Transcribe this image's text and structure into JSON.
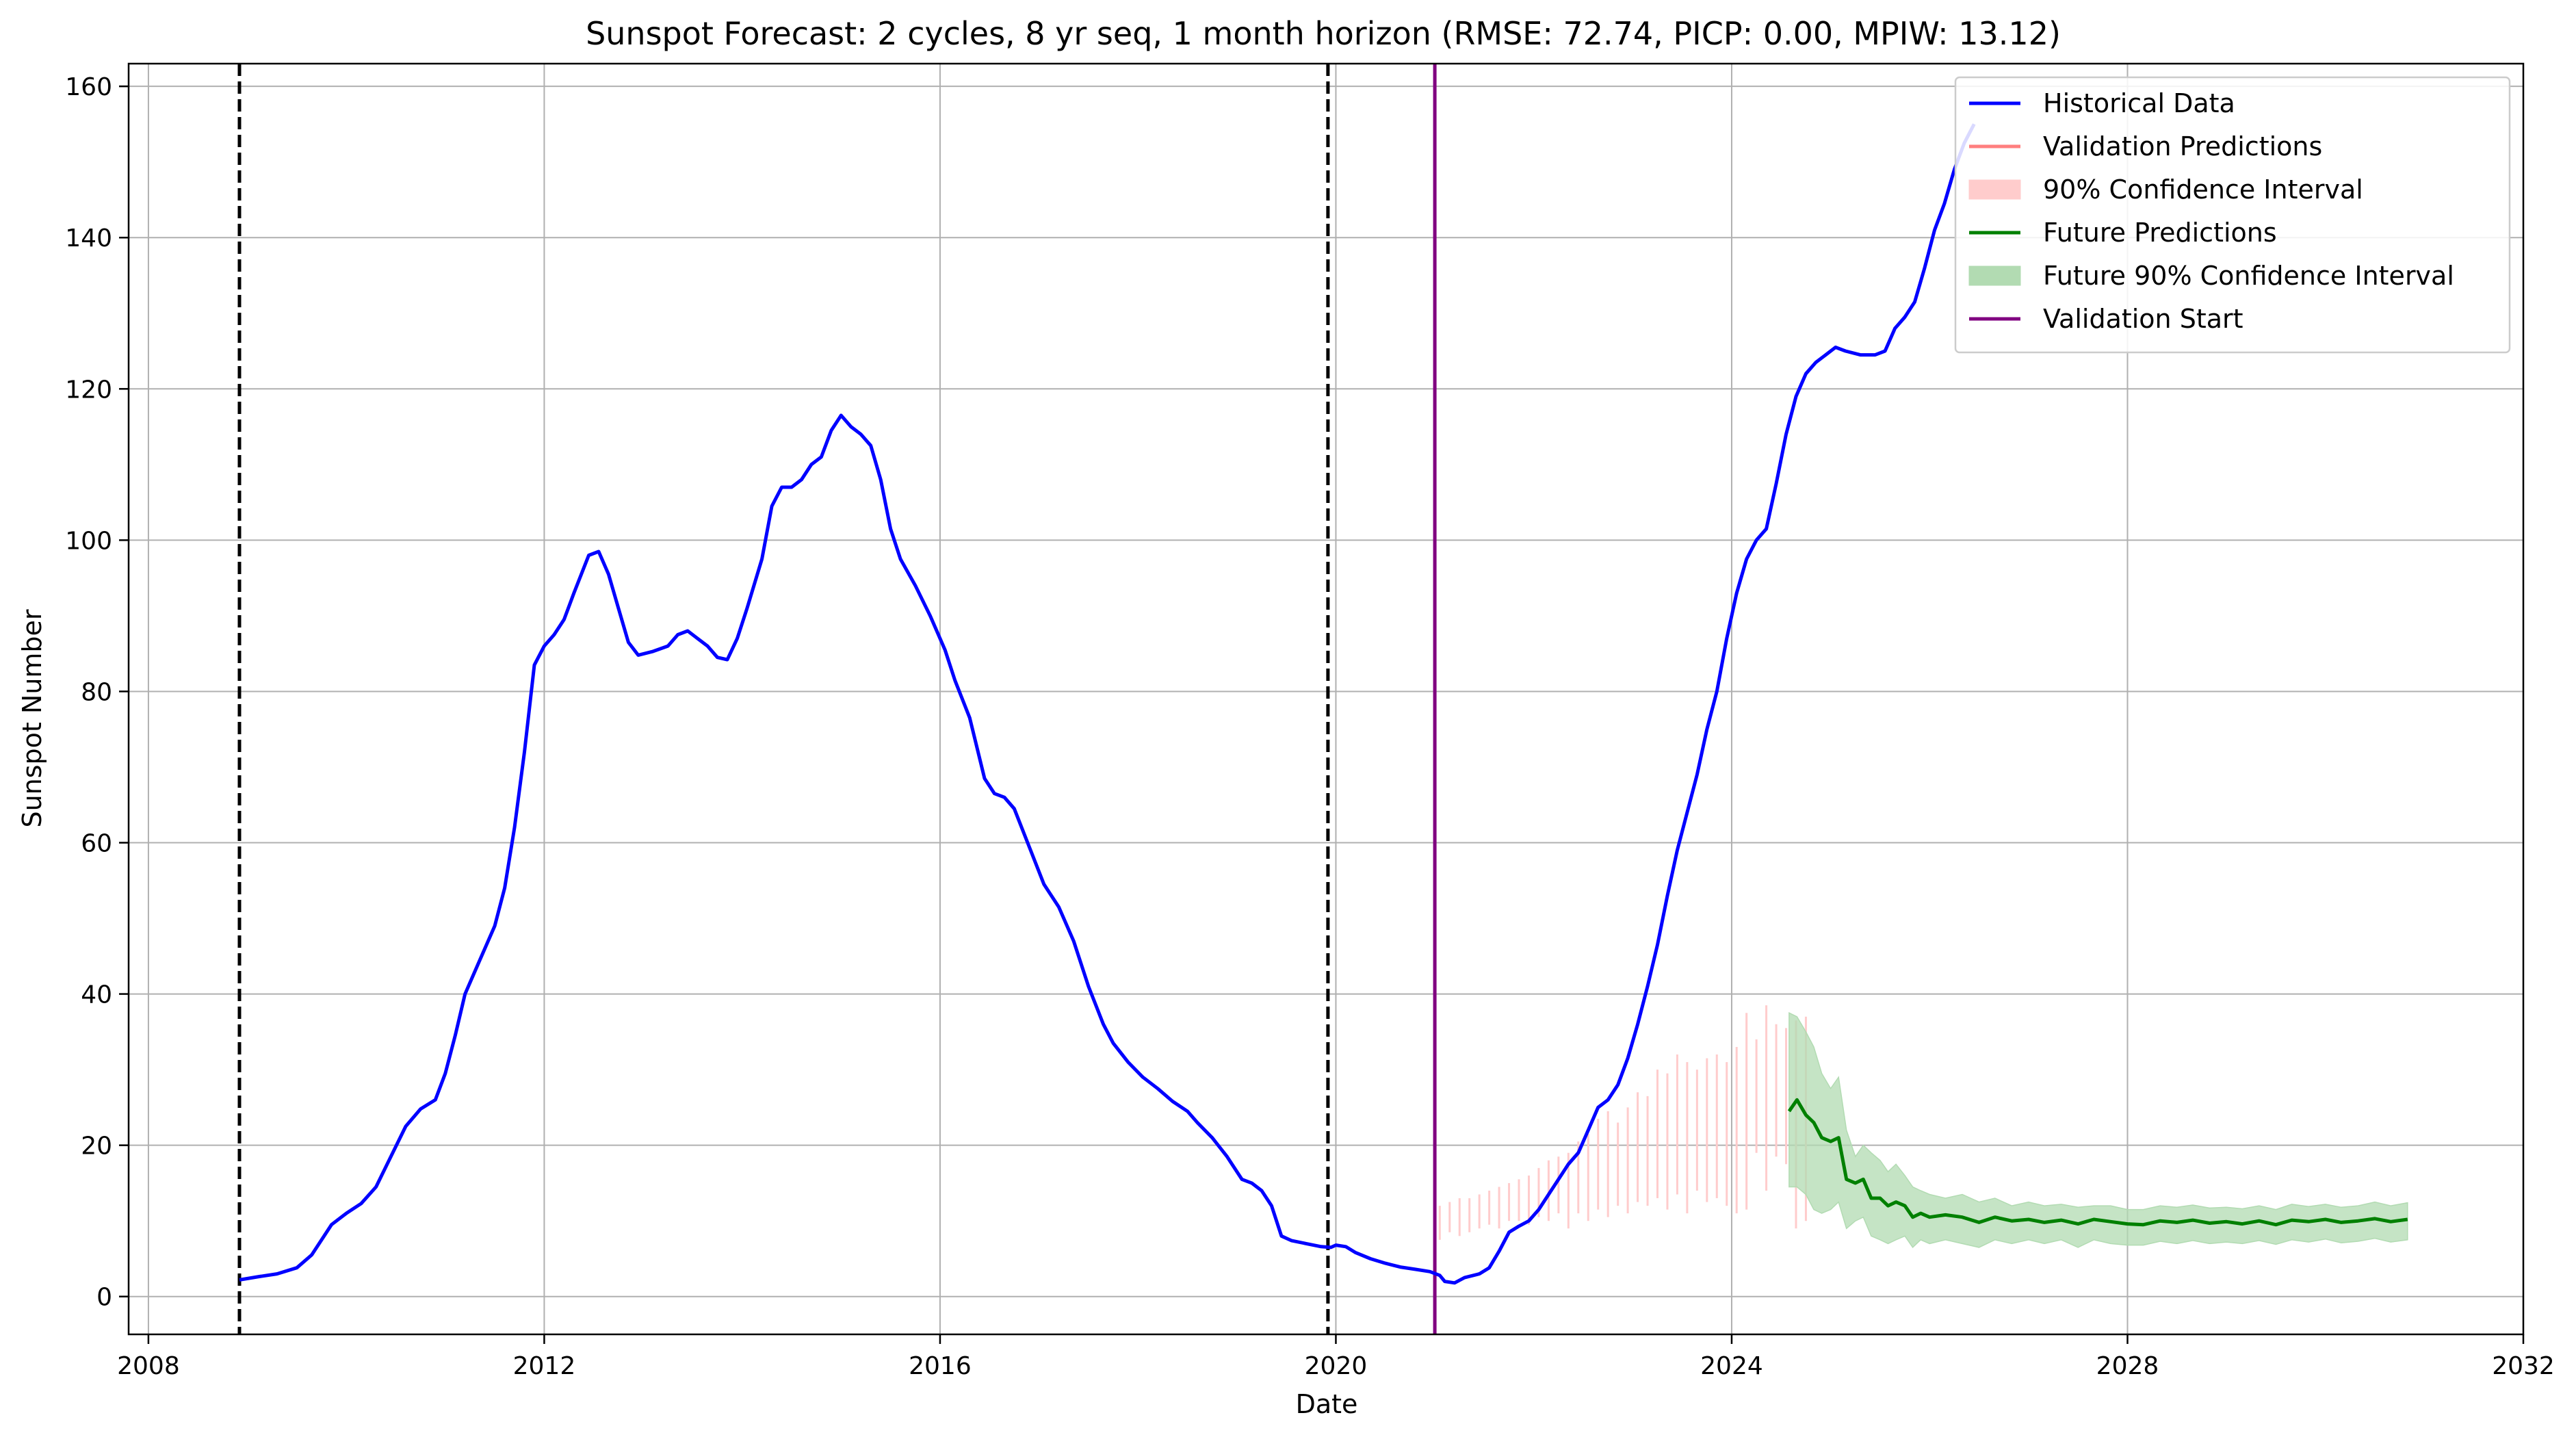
{
  "chart_data": {
    "type": "line",
    "title": "Sunspot Forecast: 2 cycles, 8 yr seq, 1 month horizon (RMSE: 72.74, PICP: 0.00, MPIW: 13.12)",
    "xlabel": "Date",
    "ylabel": "Sunspot Number",
    "xlim": [
      2007.8,
      2032.0
    ],
    "ylim": [
      -5,
      163
    ],
    "x_ticks": [
      2008,
      2012,
      2016,
      2020,
      2024,
      2028,
      2032
    ],
    "x_tick_labels": [
      "2008",
      "2012",
      "2016",
      "2020",
      "2024",
      "2028",
      "2032"
    ],
    "y_ticks": [
      0,
      20,
      40,
      60,
      80,
      100,
      120,
      140,
      160
    ],
    "y_tick_labels": [
      "0",
      "20",
      "40",
      "60",
      "80",
      "100",
      "120",
      "140",
      "160"
    ],
    "grid": true,
    "legend_position": "top-right",
    "colors": {
      "historical": "#0000ff",
      "validation": "#ff7f7f",
      "validation_ci": "#ffcccc",
      "future": "#008000",
      "future_ci": "#b2dbb2",
      "validation_start": "#800080",
      "cycle_marker": "#000000"
    },
    "legend": [
      {
        "label": "Historical Data",
        "kind": "line",
        "color": "#0000ff"
      },
      {
        "label": "Validation Predictions",
        "kind": "line",
        "color": "#ff7f7f"
      },
      {
        "label": "90% Confidence Interval",
        "kind": "patch",
        "color": "#ffcccc"
      },
      {
        "label": "Future Predictions",
        "kind": "line",
        "color": "#008000"
      },
      {
        "label": "Future 90% Confidence Interval",
        "kind": "patch",
        "color": "#b2dbb2"
      },
      {
        "label": "Validation Start",
        "kind": "line",
        "color": "#800080"
      }
    ],
    "vertical_lines": [
      {
        "x": 2008.92,
        "style": "dashed",
        "color": "#000000"
      },
      {
        "x": 2019.92,
        "style": "dashed",
        "color": "#000000"
      },
      {
        "x": 2021.0,
        "style": "solid",
        "color": "#800080"
      }
    ],
    "historical": [
      [
        2008.92,
        2.2
      ],
      [
        2009.1,
        2.6
      ],
      [
        2009.3,
        3.0
      ],
      [
        2009.5,
        3.8
      ],
      [
        2009.65,
        5.5
      ],
      [
        2009.85,
        9.5
      ],
      [
        2010.0,
        11.0
      ],
      [
        2010.15,
        12.3
      ],
      [
        2010.3,
        14.5
      ],
      [
        2010.45,
        18.5
      ],
      [
        2010.6,
        22.5
      ],
      [
        2010.75,
        24.8
      ],
      [
        2010.9,
        26.0
      ],
      [
        2011.0,
        29.5
      ],
      [
        2011.1,
        34.5
      ],
      [
        2011.2,
        40.0
      ],
      [
        2011.35,
        44.5
      ],
      [
        2011.5,
        49.0
      ],
      [
        2011.6,
        54.0
      ],
      [
        2011.7,
        62.0
      ],
      [
        2011.8,
        72.0
      ],
      [
        2011.9,
        83.5
      ],
      [
        2012.0,
        86.0
      ],
      [
        2012.1,
        87.5
      ],
      [
        2012.2,
        89.5
      ],
      [
        2012.3,
        93.0
      ],
      [
        2012.45,
        98.0
      ],
      [
        2012.55,
        98.5
      ],
      [
        2012.65,
        95.5
      ],
      [
        2012.75,
        91.0
      ],
      [
        2012.85,
        86.5
      ],
      [
        2012.95,
        84.8
      ],
      [
        2013.1,
        85.3
      ],
      [
        2013.25,
        86.0
      ],
      [
        2013.35,
        87.5
      ],
      [
        2013.45,
        88.0
      ],
      [
        2013.55,
        87.0
      ],
      [
        2013.65,
        86.0
      ],
      [
        2013.75,
        84.5
      ],
      [
        2013.85,
        84.2
      ],
      [
        2013.95,
        87.0
      ],
      [
        2014.05,
        91.0
      ],
      [
        2014.2,
        97.5
      ],
      [
        2014.3,
        104.5
      ],
      [
        2014.4,
        107.0
      ],
      [
        2014.5,
        107.0
      ],
      [
        2014.6,
        108.0
      ],
      [
        2014.7,
        110.0
      ],
      [
        2014.8,
        111.0
      ],
      [
        2014.9,
        114.5
      ],
      [
        2015.0,
        116.5
      ],
      [
        2015.1,
        115.0
      ],
      [
        2015.2,
        114.0
      ],
      [
        2015.3,
        112.5
      ],
      [
        2015.4,
        108.0
      ],
      [
        2015.5,
        101.5
      ],
      [
        2015.6,
        97.5
      ],
      [
        2015.75,
        94.0
      ],
      [
        2015.9,
        90.0
      ],
      [
        2016.05,
        85.5
      ],
      [
        2016.15,
        81.5
      ],
      [
        2016.3,
        76.5
      ],
      [
        2016.45,
        68.5
      ],
      [
        2016.55,
        66.5
      ],
      [
        2016.65,
        66.0
      ],
      [
        2016.75,
        64.5
      ],
      [
        2016.9,
        59.5
      ],
      [
        2017.05,
        54.5
      ],
      [
        2017.2,
        51.5
      ],
      [
        2017.35,
        47.0
      ],
      [
        2017.5,
        41.0
      ],
      [
        2017.65,
        36.0
      ],
      [
        2017.75,
        33.5
      ],
      [
        2017.9,
        31.0
      ],
      [
        2018.05,
        29.0
      ],
      [
        2018.2,
        27.5
      ],
      [
        2018.35,
        25.8
      ],
      [
        2018.5,
        24.5
      ],
      [
        2018.6,
        23.0
      ],
      [
        2018.75,
        21.0
      ],
      [
        2018.9,
        18.5
      ],
      [
        2019.05,
        15.5
      ],
      [
        2019.15,
        15.0
      ],
      [
        2019.25,
        14.0
      ],
      [
        2019.35,
        12.0
      ],
      [
        2019.45,
        8.0
      ],
      [
        2019.55,
        7.4
      ],
      [
        2019.7,
        7.0
      ],
      [
        2019.85,
        6.6
      ],
      [
        2019.95,
        6.5
      ],
      [
        2020.0,
        6.8
      ],
      [
        2020.1,
        6.6
      ],
      [
        2020.2,
        5.8
      ],
      [
        2020.35,
        5.0
      ],
      [
        2020.5,
        4.4
      ],
      [
        2020.65,
        3.9
      ],
      [
        2020.8,
        3.6
      ],
      [
        2020.95,
        3.3
      ],
      [
        2021.05,
        2.8
      ],
      [
        2021.1,
        2.0
      ],
      [
        2021.2,
        1.8
      ],
      [
        2021.3,
        2.5
      ],
      [
        2021.45,
        3.0
      ],
      [
        2021.55,
        3.8
      ],
      [
        2021.65,
        6.0
      ],
      [
        2021.75,
        8.5
      ],
      [
        2021.85,
        9.3
      ],
      [
        2021.95,
        10.0
      ],
      [
        2022.05,
        11.5
      ],
      [
        2022.15,
        13.5
      ],
      [
        2022.25,
        15.5
      ],
      [
        2022.35,
        17.5
      ],
      [
        2022.45,
        19.0
      ],
      [
        2022.55,
        22.0
      ],
      [
        2022.65,
        25.0
      ],
      [
        2022.75,
        26.0
      ],
      [
        2022.85,
        28.0
      ],
      [
        2022.95,
        31.5
      ],
      [
        2023.05,
        36.0
      ],
      [
        2023.15,
        41.0
      ],
      [
        2023.25,
        46.5
      ],
      [
        2023.35,
        53.0
      ],
      [
        2023.45,
        59.0
      ],
      [
        2023.55,
        64.0
      ],
      [
        2023.65,
        69.0
      ],
      [
        2023.75,
        75.0
      ],
      [
        2023.85,
        80.0
      ],
      [
        2023.95,
        87.0
      ],
      [
        2024.05,
        93.0
      ],
      [
        2024.15,
        97.5
      ],
      [
        2024.25,
        100.0
      ],
      [
        2024.35,
        101.5
      ],
      [
        2024.45,
        107.5
      ],
      [
        2024.55,
        114.0
      ],
      [
        2024.65,
        119.0
      ],
      [
        2024.75,
        122.0
      ],
      [
        2024.85,
        123.5
      ],
      [
        2024.95,
        124.5
      ],
      [
        2025.05,
        125.5
      ],
      [
        2025.15,
        125.0
      ],
      [
        2025.3,
        124.5
      ],
      [
        2025.45,
        124.5
      ],
      [
        2025.55,
        125.0
      ],
      [
        2025.65,
        128.0
      ],
      [
        2025.75,
        129.5
      ],
      [
        2025.85,
        131.5
      ],
      [
        2025.95,
        136.0
      ],
      [
        2026.05,
        141.0
      ],
      [
        2026.15,
        144.5
      ],
      [
        2026.25,
        149.0
      ],
      [
        2026.35,
        152.5
      ],
      [
        2026.45,
        155.0
      ]
    ],
    "validation_ci": [
      [
        2021.05,
        7.5,
        12.0
      ],
      [
        2021.15,
        8.5,
        12.5
      ],
      [
        2021.25,
        8.0,
        13.0
      ],
      [
        2021.35,
        8.5,
        13.0
      ],
      [
        2021.45,
        9.0,
        13.5
      ],
      [
        2021.55,
        9.5,
        14.0
      ],
      [
        2021.65,
        9.0,
        14.5
      ],
      [
        2021.75,
        10.0,
        15.0
      ],
      [
        2021.85,
        10.0,
        15.5
      ],
      [
        2021.95,
        9.5,
        16.0
      ],
      [
        2022.05,
        10.5,
        17.0
      ],
      [
        2022.15,
        10.0,
        18.0
      ],
      [
        2022.25,
        11.0,
        18.5
      ],
      [
        2022.35,
        9.0,
        19.0
      ],
      [
        2022.45,
        11.0,
        20.5
      ],
      [
        2022.55,
        10.0,
        21.5
      ],
      [
        2022.65,
        11.5,
        23.5
      ],
      [
        2022.75,
        10.5,
        24.5
      ],
      [
        2022.85,
        12.0,
        23.0
      ],
      [
        2022.95,
        11.0,
        25.0
      ],
      [
        2023.05,
        12.5,
        27.0
      ],
      [
        2023.15,
        12.0,
        26.5
      ],
      [
        2023.25,
        13.0,
        30.0
      ],
      [
        2023.35,
        11.5,
        29.5
      ],
      [
        2023.45,
        13.5,
        32.0
      ],
      [
        2023.55,
        11.0,
        31.0
      ],
      [
        2023.65,
        14.0,
        30.0
      ],
      [
        2023.75,
        12.5,
        31.5
      ],
      [
        2023.85,
        13.0,
        32.0
      ],
      [
        2023.95,
        12.0,
        31.0
      ],
      [
        2024.05,
        11.0,
        33.0
      ],
      [
        2024.15,
        11.5,
        37.5
      ],
      [
        2024.25,
        19.0,
        34.0
      ],
      [
        2024.35,
        14.0,
        38.5
      ],
      [
        2024.45,
        18.5,
        36.0
      ],
      [
        2024.55,
        17.5,
        35.5
      ],
      [
        2024.65,
        9.0,
        36.5
      ],
      [
        2024.75,
        10.0,
        37.0
      ]
    ],
    "future": [
      [
        2024.58,
        24.5
      ],
      [
        2024.66,
        26.0
      ],
      [
        2024.75,
        24.0
      ],
      [
        2024.83,
        23.0
      ],
      [
        2024.91,
        21.0
      ],
      [
        2025.0,
        20.5
      ],
      [
        2025.08,
        21.0
      ],
      [
        2025.16,
        15.5
      ],
      [
        2025.25,
        15.0
      ],
      [
        2025.33,
        15.5
      ],
      [
        2025.41,
        13.0
      ],
      [
        2025.5,
        13.0
      ],
      [
        2025.58,
        12.0
      ],
      [
        2025.66,
        12.5
      ],
      [
        2025.75,
        12.0
      ],
      [
        2025.83,
        10.5
      ],
      [
        2025.91,
        11.0
      ],
      [
        2026.0,
        10.5
      ],
      [
        2026.16,
        10.8
      ],
      [
        2026.33,
        10.5
      ],
      [
        2026.5,
        9.8
      ],
      [
        2026.66,
        10.5
      ],
      [
        2026.83,
        10.0
      ],
      [
        2027.0,
        10.2
      ],
      [
        2027.16,
        9.8
      ],
      [
        2027.33,
        10.1
      ],
      [
        2027.5,
        9.6
      ],
      [
        2027.66,
        10.2
      ],
      [
        2027.83,
        9.9
      ],
      [
        2028.0,
        9.6
      ],
      [
        2028.16,
        9.5
      ],
      [
        2028.33,
        10.0
      ],
      [
        2028.5,
        9.8
      ],
      [
        2028.66,
        10.1
      ],
      [
        2028.83,
        9.7
      ],
      [
        2029.0,
        9.9
      ],
      [
        2029.16,
        9.6
      ],
      [
        2029.33,
        10.0
      ],
      [
        2029.5,
        9.5
      ],
      [
        2029.66,
        10.1
      ],
      [
        2029.83,
        9.9
      ],
      [
        2030.0,
        10.2
      ],
      [
        2030.16,
        9.8
      ],
      [
        2030.33,
        10.0
      ],
      [
        2030.5,
        10.3
      ],
      [
        2030.66,
        9.9
      ],
      [
        2030.83,
        10.2
      ]
    ],
    "future_ci": [
      [
        2024.58,
        14.5,
        37.5
      ],
      [
        2024.66,
        14.5,
        37.0
      ],
      [
        2024.75,
        13.5,
        35.0
      ],
      [
        2024.83,
        11.5,
        33.0
      ],
      [
        2024.91,
        11.0,
        29.5
      ],
      [
        2025.0,
        11.5,
        27.5
      ],
      [
        2025.08,
        12.5,
        29.0
      ],
      [
        2025.16,
        9.0,
        22.0
      ],
      [
        2025.25,
        10.0,
        18.5
      ],
      [
        2025.33,
        10.5,
        20.0
      ],
      [
        2025.41,
        8.0,
        19.0
      ],
      [
        2025.5,
        7.5,
        18.0
      ],
      [
        2025.58,
        7.0,
        16.5
      ],
      [
        2025.66,
        7.5,
        17.5
      ],
      [
        2025.75,
        8.0,
        16.0
      ],
      [
        2025.83,
        6.5,
        14.5
      ],
      [
        2025.91,
        7.5,
        14.0
      ],
      [
        2026.0,
        7.0,
        13.5
      ],
      [
        2026.16,
        7.5,
        13.0
      ],
      [
        2026.33,
        7.0,
        13.5
      ],
      [
        2026.5,
        6.5,
        12.5
      ],
      [
        2026.66,
        7.5,
        13.0
      ],
      [
        2026.83,
        7.0,
        12.0
      ],
      [
        2027.0,
        7.5,
        12.5
      ],
      [
        2027.16,
        7.0,
        12.0
      ],
      [
        2027.33,
        7.5,
        12.2
      ],
      [
        2027.5,
        6.5,
        11.8
      ],
      [
        2027.66,
        7.5,
        12.0
      ],
      [
        2027.83,
        7.0,
        12.0
      ],
      [
        2028.0,
        6.8,
        11.5
      ],
      [
        2028.16,
        6.8,
        11.5
      ],
      [
        2028.33,
        7.3,
        12.0
      ],
      [
        2028.5,
        7.0,
        11.8
      ],
      [
        2028.66,
        7.4,
        12.1
      ],
      [
        2028.83,
        7.0,
        11.7
      ],
      [
        2029.0,
        7.2,
        11.8
      ],
      [
        2029.16,
        7.0,
        11.6
      ],
      [
        2029.33,
        7.4,
        12.0
      ],
      [
        2029.5,
        6.9,
        11.5
      ],
      [
        2029.66,
        7.5,
        12.2
      ],
      [
        2029.83,
        7.2,
        11.9
      ],
      [
        2030.0,
        7.6,
        12.2
      ],
      [
        2030.16,
        7.1,
        11.8
      ],
      [
        2030.33,
        7.3,
        12.0
      ],
      [
        2030.5,
        7.7,
        12.5
      ],
      [
        2030.66,
        7.2,
        12.0
      ],
      [
        2030.83,
        7.5,
        12.4
      ]
    ]
  }
}
